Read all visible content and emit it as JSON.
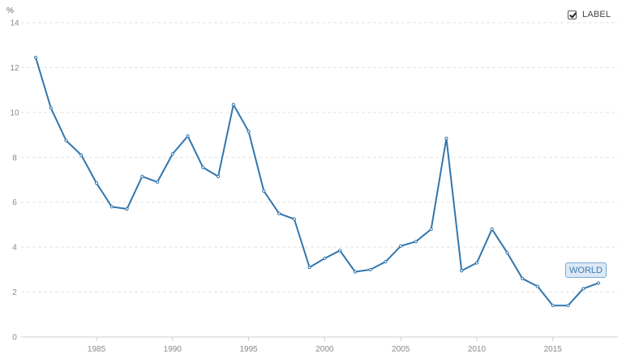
{
  "controls": {
    "label_toggle": "LABEL",
    "label_checked": true
  },
  "colors": {
    "series": "#3276ad",
    "tag_bg": "#dbe9f6"
  },
  "chart_data": {
    "type": "line",
    "title": "",
    "xlabel": "",
    "ylabel": "%",
    "xlim": [
      1981,
      2018
    ],
    "ylim": [
      0,
      14
    ],
    "x_ticks": [
      1985,
      1990,
      1995,
      2000,
      2005,
      2010,
      2015
    ],
    "y_ticks": [
      0,
      2,
      4,
      6,
      8,
      10,
      12,
      14
    ],
    "grid": true,
    "legend": "none",
    "series": [
      {
        "name": "WORLD",
        "x": [
          1981,
          1982,
          1983,
          1984,
          1985,
          1986,
          1987,
          1988,
          1989,
          1990,
          1991,
          1992,
          1993,
          1994,
          1995,
          1996,
          1997,
          1998,
          1999,
          2000,
          2001,
          2002,
          2003,
          2004,
          2005,
          2006,
          2007,
          2008,
          2009,
          2010,
          2011,
          2012,
          2013,
          2014,
          2015,
          2016,
          2017,
          2018
        ],
        "y": [
          12.45,
          10.2,
          8.75,
          8.1,
          6.85,
          5.8,
          5.7,
          7.15,
          6.9,
          8.15,
          8.95,
          7.55,
          7.15,
          10.35,
          9.15,
          6.5,
          5.5,
          5.25,
          3.1,
          3.5,
          3.85,
          2.9,
          3.0,
          3.35,
          4.05,
          4.25,
          4.8,
          8.85,
          2.95,
          3.3,
          4.8,
          3.75,
          2.6,
          2.25,
          1.4,
          1.4,
          2.15,
          2.4
        ]
      }
    ]
  }
}
